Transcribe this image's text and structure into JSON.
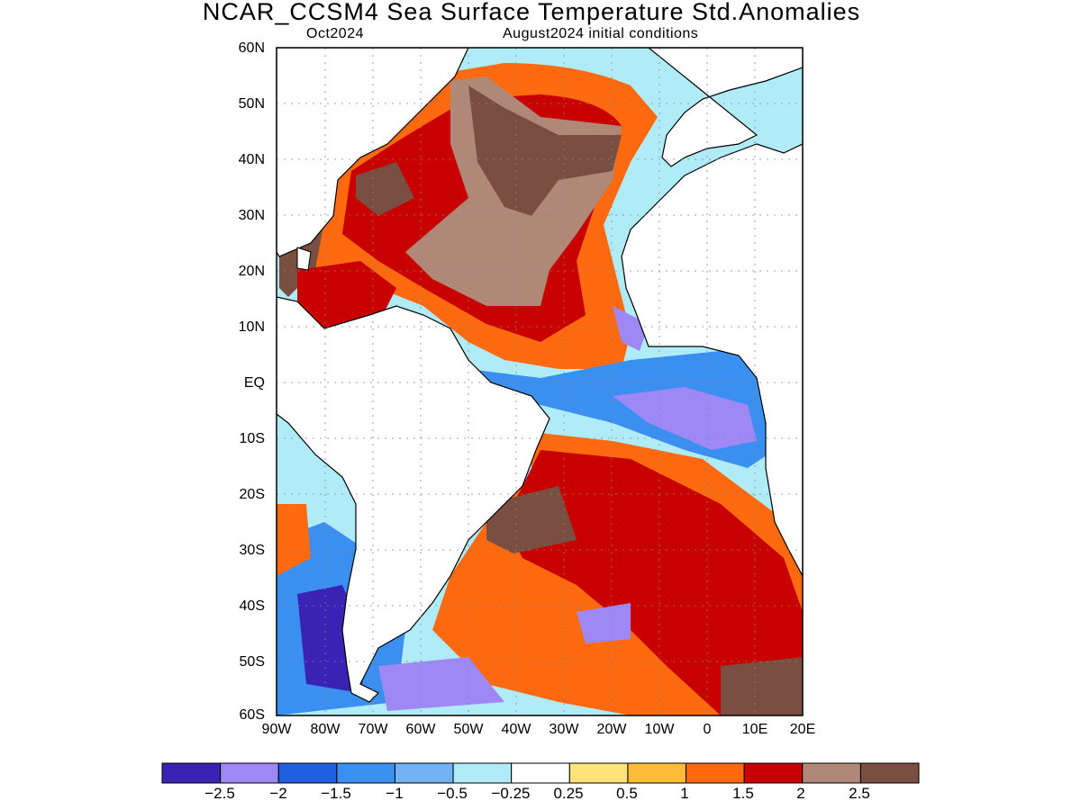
{
  "header": {
    "title": "NCAR_CCSM4 Sea Surface Temperature Std.Anomalies",
    "target_month": "Oct2024",
    "initial_conditions": "August2024 initial conditions"
  },
  "map": {
    "region": "Atlantic Ocean",
    "lat_labels": [
      "60N",
      "50N",
      "40N",
      "30N",
      "20N",
      "10N",
      "EQ",
      "10S",
      "20S",
      "30S",
      "40S",
      "50S",
      "60S"
    ],
    "lon_labels": [
      "90W",
      "80W",
      "70W",
      "60W",
      "50W",
      "40W",
      "30W",
      "20W",
      "10W",
      "0",
      "10E",
      "20E"
    ],
    "land_color": "#ffffff",
    "coastline_color": "#000000",
    "grid": "dotted"
  },
  "colorbar": {
    "colors": [
      "#3a22b5",
      "#9d88f5",
      "#1f5fe0",
      "#3b8ff0",
      "#72b2f5",
      "#b0ecf8",
      "#ffffff",
      "#ffe27a",
      "#ffbc3a",
      "#ff6a10",
      "#c80000",
      "#b08878",
      "#7a4e40"
    ],
    "labels": [
      "−2.5",
      "−2",
      "−1.5",
      "−1",
      "−0.5",
      "−0.25",
      "0.25",
      "0.5",
      "1",
      "1.5",
      "2",
      "2.5"
    ]
  }
}
